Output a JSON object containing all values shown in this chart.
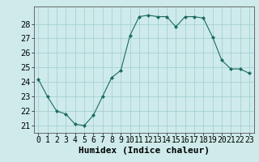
{
  "x": [
    0,
    1,
    2,
    3,
    4,
    5,
    6,
    7,
    8,
    9,
    10,
    11,
    12,
    13,
    14,
    15,
    16,
    17,
    18,
    19,
    20,
    21,
    22,
    23
  ],
  "y": [
    24.2,
    23.0,
    22.0,
    21.8,
    21.1,
    21.0,
    21.7,
    23.0,
    24.3,
    24.8,
    27.2,
    28.5,
    28.6,
    28.5,
    28.5,
    27.8,
    28.5,
    28.5,
    28.4,
    27.1,
    25.5,
    24.9,
    24.9,
    24.6
  ],
  "xlabel": "Humidex (Indice chaleur)",
  "xlim": [
    -0.5,
    23.5
  ],
  "ylim": [
    20.5,
    29.2
  ],
  "yticks": [
    21,
    22,
    23,
    24,
    25,
    26,
    27,
    28
  ],
  "xtick_labels": [
    "0",
    "1",
    "2",
    "3",
    "4",
    "5",
    "6",
    "7",
    "8",
    "9",
    "10",
    "11",
    "12",
    "13",
    "14",
    "15",
    "16",
    "17",
    "18",
    "19",
    "20",
    "21",
    "22",
    "23"
  ],
  "line_color": "#1a6b5e",
  "marker_color": "#1a6b5e",
  "bg_color": "#ceeaea",
  "grid_color": "#a0cccc",
  "xlabel_fontsize": 8,
  "tick_fontsize": 7
}
